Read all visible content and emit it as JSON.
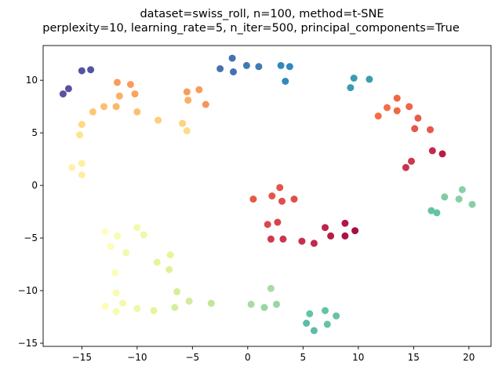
{
  "chart_data": {
    "type": "scatter",
    "title_lines": [
      "dataset=swiss_roll, n=100, method=t-SNE",
      "perplexity=10, learning_rate=5, n_iter=500, principal_components=True"
    ],
    "xlabel": "",
    "ylabel": "",
    "xlim": [
      -18.5,
      22
    ],
    "ylim": [
      -15.3,
      13.3
    ],
    "x_ticks": [
      -15,
      -10,
      -5,
      0,
      5,
      10,
      15,
      20
    ],
    "y_ticks": [
      -15,
      -10,
      -5,
      0,
      5,
      10
    ],
    "grid": false,
    "colormap": "Spectral",
    "points": [
      {
        "x": -16.7,
        "y": 8.7,
        "color": "#5e4fa2"
      },
      {
        "x": -16.2,
        "y": 9.2,
        "color": "#5e4fa2"
      },
      {
        "x": -15.0,
        "y": 10.9,
        "color": "#5554a3"
      },
      {
        "x": -14.2,
        "y": 11.0,
        "color": "#5554a3"
      },
      {
        "x": -2.5,
        "y": 11.1,
        "color": "#4a6fb0"
      },
      {
        "x": -1.4,
        "y": 12.1,
        "color": "#4471b2"
      },
      {
        "x": -1.3,
        "y": 10.8,
        "color": "#4471b2"
      },
      {
        "x": -0.1,
        "y": 11.4,
        "color": "#3f7ab6"
      },
      {
        "x": 1.0,
        "y": 11.3,
        "color": "#3f7ab6"
      },
      {
        "x": 3.0,
        "y": 11.4,
        "color": "#3288bd"
      },
      {
        "x": 3.8,
        "y": 11.3,
        "color": "#3288bd"
      },
      {
        "x": 3.4,
        "y": 9.9,
        "color": "#3288bd"
      },
      {
        "x": 9.3,
        "y": 9.3,
        "color": "#3b9bb1"
      },
      {
        "x": 9.6,
        "y": 10.2,
        "color": "#3b9bb1"
      },
      {
        "x": 11.0,
        "y": 10.1,
        "color": "#3b9bb1"
      },
      {
        "x": 17.1,
        "y": -2.6,
        "color": "#66c2a5"
      },
      {
        "x": 16.6,
        "y": -2.4,
        "color": "#66c2a5"
      },
      {
        "x": 17.8,
        "y": -1.1,
        "color": "#7fcca4"
      },
      {
        "x": 19.1,
        "y": -1.3,
        "color": "#88d0a4"
      },
      {
        "x": 19.4,
        "y": -0.4,
        "color": "#88d0a4"
      },
      {
        "x": 20.3,
        "y": -1.8,
        "color": "#88d0a4"
      },
      {
        "x": 5.3,
        "y": -13.1,
        "color": "#5fbaa8"
      },
      {
        "x": 6.0,
        "y": -13.8,
        "color": "#5fbaa8"
      },
      {
        "x": 5.6,
        "y": -12.2,
        "color": "#66c2a5"
      },
      {
        "x": 7.0,
        "y": -11.9,
        "color": "#66c2a5"
      },
      {
        "x": 7.2,
        "y": -13.2,
        "color": "#66c2a5"
      },
      {
        "x": 8.0,
        "y": -12.4,
        "color": "#66c2a5"
      },
      {
        "x": 0.3,
        "y": -11.3,
        "color": "#a8dca2"
      },
      {
        "x": 1.5,
        "y": -11.6,
        "color": "#98d6a4"
      },
      {
        "x": 2.1,
        "y": -9.8,
        "color": "#a8dca2"
      },
      {
        "x": 2.6,
        "y": -11.3,
        "color": "#98d6a4"
      },
      {
        "x": -3.3,
        "y": -11.2,
        "color": "#c4e699"
      },
      {
        "x": -5.3,
        "y": -11.0,
        "color": "#d0ec9c"
      },
      {
        "x": -6.4,
        "y": -10.1,
        "color": "#d6ee9b"
      },
      {
        "x": -6.6,
        "y": -11.6,
        "color": "#d6ee9b"
      },
      {
        "x": -8.5,
        "y": -11.9,
        "color": "#e6f598"
      },
      {
        "x": -10.0,
        "y": -11.7,
        "color": "#eef8a8"
      },
      {
        "x": -11.3,
        "y": -11.2,
        "color": "#f3faac"
      },
      {
        "x": -11.9,
        "y": -10.2,
        "color": "#f7fcb1"
      },
      {
        "x": -11.9,
        "y": -12.0,
        "color": "#f7fcb1"
      },
      {
        "x": -12.9,
        "y": -11.5,
        "color": "#fbfdb9"
      },
      {
        "x": -12.0,
        "y": -8.3,
        "color": "#fbfdb9"
      },
      {
        "x": -7.1,
        "y": -8.0,
        "color": "#dff299"
      },
      {
        "x": -8.2,
        "y": -7.3,
        "color": "#e6f598"
      },
      {
        "x": -7.0,
        "y": -6.6,
        "color": "#e6f598"
      },
      {
        "x": -9.4,
        "y": -4.7,
        "color": "#eef8a8"
      },
      {
        "x": -10.0,
        "y": -4.0,
        "color": "#f3faac"
      },
      {
        "x": -11.0,
        "y": -6.4,
        "color": "#f3faac"
      },
      {
        "x": -11.8,
        "y": -4.8,
        "color": "#f7fcb1"
      },
      {
        "x": -12.4,
        "y": -5.8,
        "color": "#fbfdb9"
      },
      {
        "x": -12.9,
        "y": -4.4,
        "color": "#fefebd"
      },
      {
        "x": -15.9,
        "y": 1.7,
        "color": "#fff2a8"
      },
      {
        "x": -15.0,
        "y": 2.1,
        "color": "#ffeea1"
      },
      {
        "x": -15.0,
        "y": 1.0,
        "color": "#ffeea1"
      },
      {
        "x": -15.2,
        "y": 4.8,
        "color": "#fee391"
      },
      {
        "x": -15.0,
        "y": 5.8,
        "color": "#fed884"
      },
      {
        "x": -14.0,
        "y": 7.0,
        "color": "#fdc775"
      },
      {
        "x": -13.0,
        "y": 7.5,
        "color": "#fdbf6f"
      },
      {
        "x": -11.9,
        "y": 7.5,
        "color": "#fdb768"
      },
      {
        "x": -11.6,
        "y": 8.5,
        "color": "#fdb063"
      },
      {
        "x": -11.8,
        "y": 9.8,
        "color": "#f99b5c"
      },
      {
        "x": -10.6,
        "y": 9.6,
        "color": "#f99b5c"
      },
      {
        "x": -10.2,
        "y": 8.7,
        "color": "#fba35f"
      },
      {
        "x": -10.0,
        "y": 7.0,
        "color": "#fdbf6f"
      },
      {
        "x": -8.1,
        "y": 6.2,
        "color": "#fece7c"
      },
      {
        "x": -5.9,
        "y": 5.9,
        "color": "#fed27f"
      },
      {
        "x": -5.5,
        "y": 5.2,
        "color": "#fedb87"
      },
      {
        "x": -5.4,
        "y": 8.1,
        "color": "#fdb063"
      },
      {
        "x": -5.5,
        "y": 8.9,
        "color": "#f99b5c"
      },
      {
        "x": -4.4,
        "y": 9.1,
        "color": "#f99b5c"
      },
      {
        "x": -3.8,
        "y": 7.7,
        "color": "#f7955a"
      },
      {
        "x": 11.8,
        "y": 6.6,
        "color": "#f46d43"
      },
      {
        "x": 12.6,
        "y": 7.4,
        "color": "#f46d43"
      },
      {
        "x": 13.5,
        "y": 8.3,
        "color": "#f06744"
      },
      {
        "x": 13.5,
        "y": 7.1,
        "color": "#f06744"
      },
      {
        "x": 14.6,
        "y": 7.5,
        "color": "#ee6445"
      },
      {
        "x": 15.4,
        "y": 6.4,
        "color": "#e95c47"
      },
      {
        "x": 15.1,
        "y": 5.4,
        "color": "#e5554a"
      },
      {
        "x": 16.5,
        "y": 5.3,
        "color": "#e55a4a"
      },
      {
        "x": 14.3,
        "y": 1.7,
        "color": "#cb334d"
      },
      {
        "x": 14.8,
        "y": 2.3,
        "color": "#d0384e"
      },
      {
        "x": 16.7,
        "y": 3.3,
        "color": "#c12a4b"
      },
      {
        "x": 17.6,
        "y": 3.0,
        "color": "#b71c46"
      },
      {
        "x": 0.5,
        "y": -1.3,
        "color": "#e65a47"
      },
      {
        "x": 2.2,
        "y": -1.0,
        "color": "#e5554a"
      },
      {
        "x": 2.9,
        "y": -0.2,
        "color": "#e5554a"
      },
      {
        "x": 3.1,
        "y": -1.5,
        "color": "#e04e4a"
      },
      {
        "x": 4.2,
        "y": -1.3,
        "color": "#e04e4a"
      },
      {
        "x": 1.8,
        "y": -3.7,
        "color": "#db484b"
      },
      {
        "x": 2.7,
        "y": -3.5,
        "color": "#d8444c"
      },
      {
        "x": 2.1,
        "y": -5.1,
        "color": "#d0384e"
      },
      {
        "x": 3.2,
        "y": -5.1,
        "color": "#cd354e"
      },
      {
        "x": 4.9,
        "y": -5.3,
        "color": "#c72f4d"
      },
      {
        "x": 6.0,
        "y": -5.5,
        "color": "#c12a4b"
      },
      {
        "x": 7.0,
        "y": -4.0,
        "color": "#bc2548"
      },
      {
        "x": 7.5,
        "y": -4.8,
        "color": "#b71c46"
      },
      {
        "x": 8.8,
        "y": -3.6,
        "color": "#b01745"
      },
      {
        "x": 8.8,
        "y": -4.8,
        "color": "#aa1244"
      },
      {
        "x": 9.7,
        "y": -4.3,
        "color": "#a50f43"
      }
    ]
  }
}
